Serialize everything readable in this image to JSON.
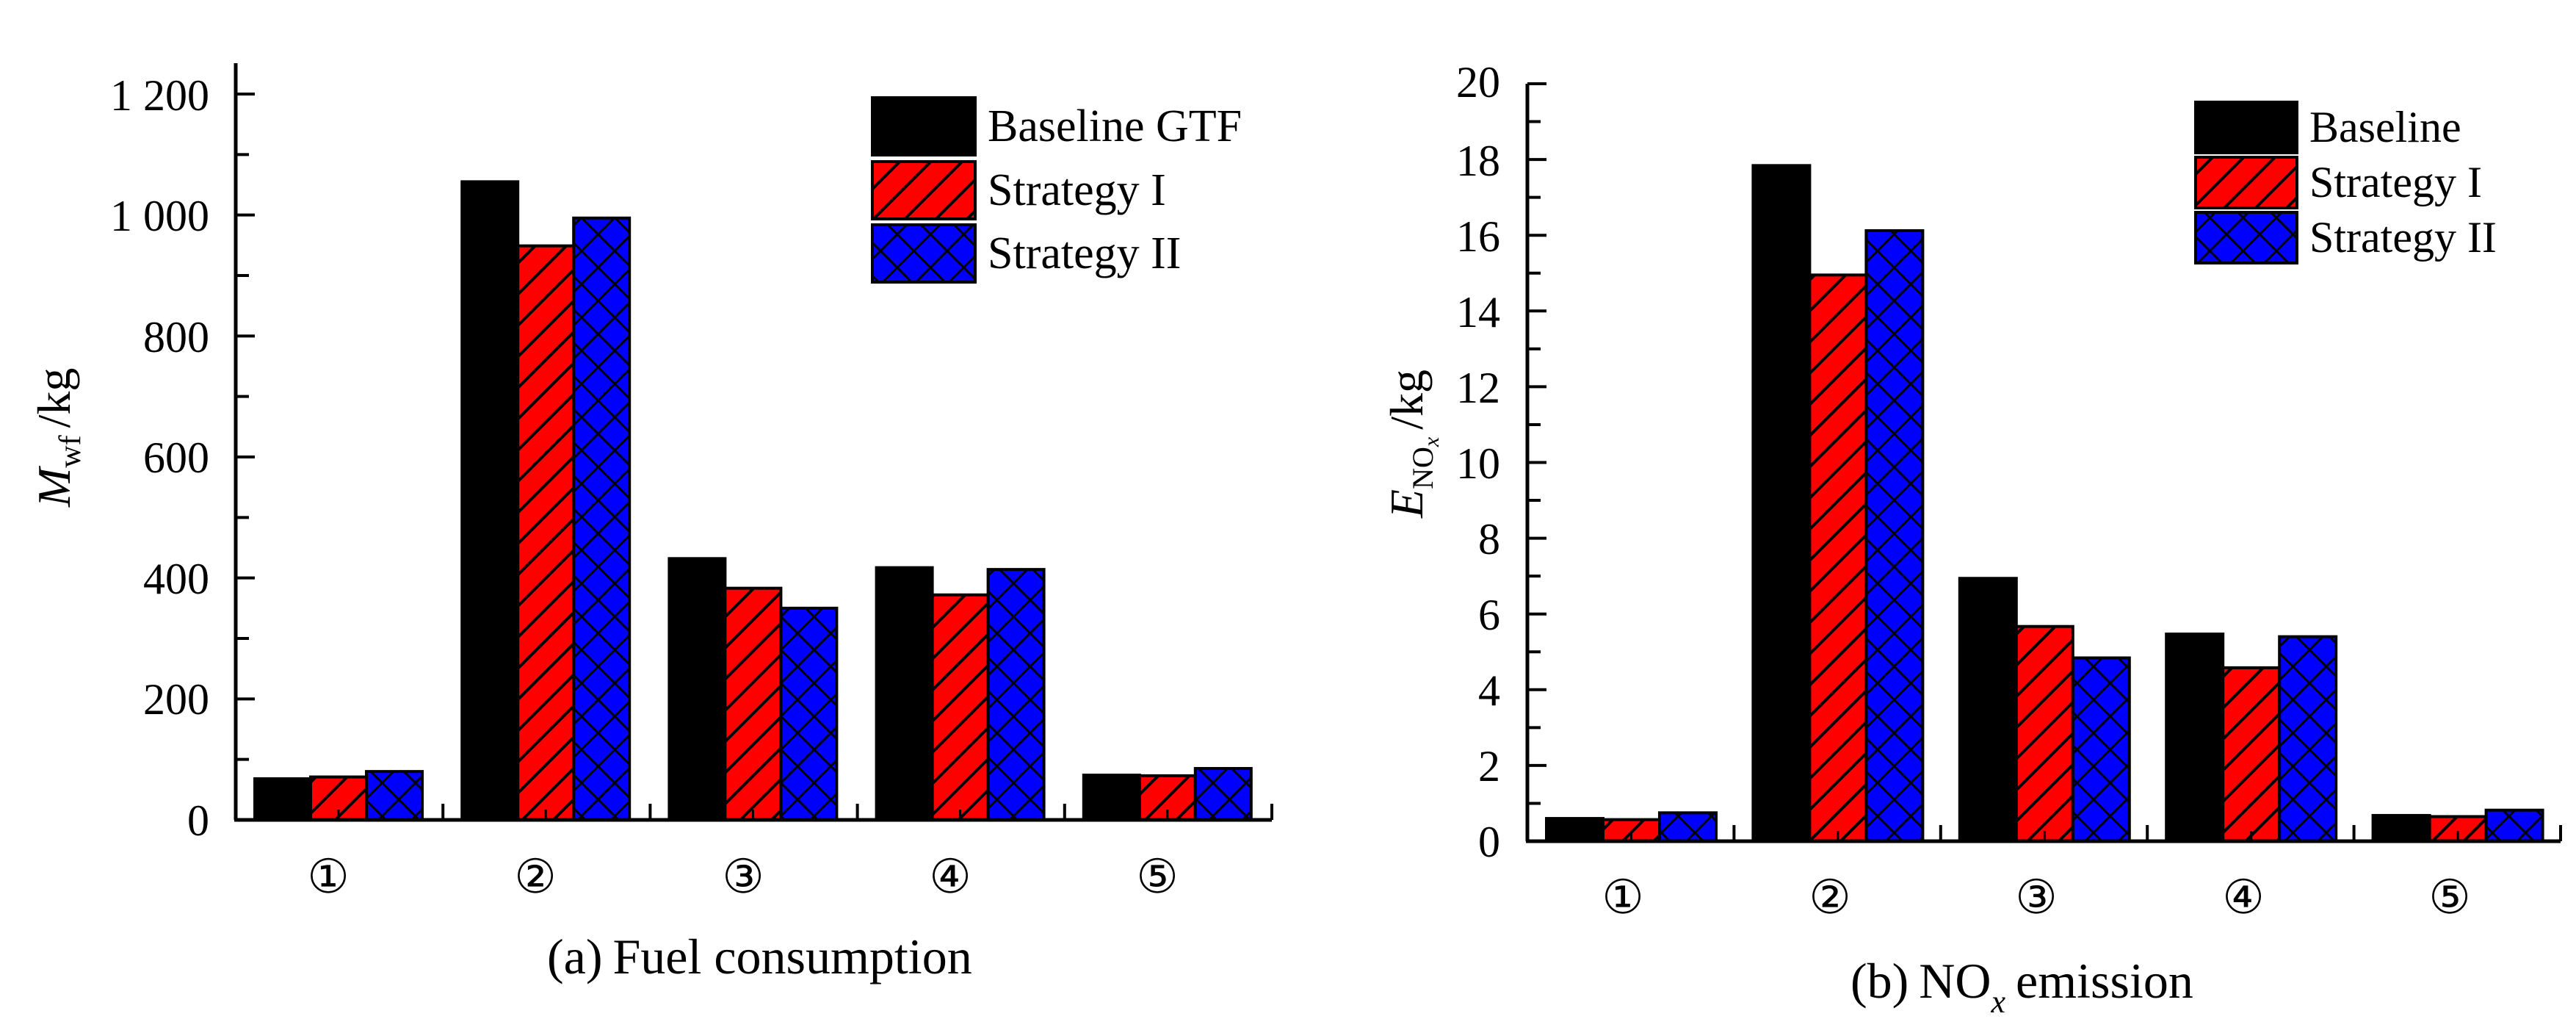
{
  "colors": {
    "baseline": "#000000",
    "strategy1": "#ff0000",
    "strategy2": "#0000ff",
    "axis": "#000000"
  },
  "chart_data": [
    {
      "type": "bar",
      "title": "(a) Fuel consumption",
      "caption_prefix": "(a)",
      "caption_text": "Fuel consumption",
      "ylabel": {
        "symbol": "M",
        "subscript": "wf",
        "unit": "/kg"
      },
      "xlabel": "",
      "categories": [
        "①",
        "②",
        "③",
        "④",
        "⑤"
      ],
      "ylim": [
        0,
        1250
      ],
      "yticks": [
        0,
        200,
        400,
        600,
        800,
        1000,
        1200
      ],
      "ytick_labels": [
        "0",
        "200",
        "400",
        "600",
        "800",
        "1 000",
        "1 200"
      ],
      "minor_step": 100,
      "grid": false,
      "legend_position": "top-right",
      "series": [
        {
          "name": "Baseline GTF",
          "pattern": "solid",
          "values": [
            68,
            1055,
            432,
            417,
            74
          ]
        },
        {
          "name": "Strategy I",
          "pattern": "diagonal-hatch",
          "values": [
            71,
            949,
            383,
            372,
            73
          ]
        },
        {
          "name": "Strategy II",
          "pattern": "crosshatch",
          "values": [
            80,
            995,
            350,
            414,
            85
          ]
        }
      ]
    },
    {
      "type": "bar",
      "title": "(b) NOx emission",
      "caption_prefix": "(b)",
      "caption_text_main": "NO",
      "caption_text_sub": "x",
      "caption_text_tail": "emission",
      "ylabel": {
        "symbol": "E",
        "subscript": "NO",
        "subsubscript": "x",
        "unit": "/kg"
      },
      "xlabel": "",
      "categories": [
        "①",
        "②",
        "③",
        "④",
        "⑤"
      ],
      "ylim": [
        0,
        20
      ],
      "yticks": [
        0,
        2,
        4,
        6,
        8,
        10,
        12,
        14,
        16,
        18,
        20
      ],
      "ytick_labels": [
        "0",
        "2",
        "4",
        "6",
        "8",
        "10",
        "12",
        "14",
        "16",
        "18",
        "20"
      ],
      "minor_step": 1,
      "grid": false,
      "legend_position": "top-right",
      "series": [
        {
          "name": "Baseline",
          "pattern": "solid",
          "values": [
            0.6,
            17.84,
            6.94,
            5.47,
            0.68
          ]
        },
        {
          "name": "Strategy I",
          "pattern": "diagonal-hatch",
          "values": [
            0.57,
            14.95,
            5.67,
            4.58,
            0.65
          ]
        },
        {
          "name": "Strategy II",
          "pattern": "crosshatch",
          "values": [
            0.75,
            16.12,
            4.84,
            5.4,
            0.82
          ]
        }
      ]
    }
  ]
}
